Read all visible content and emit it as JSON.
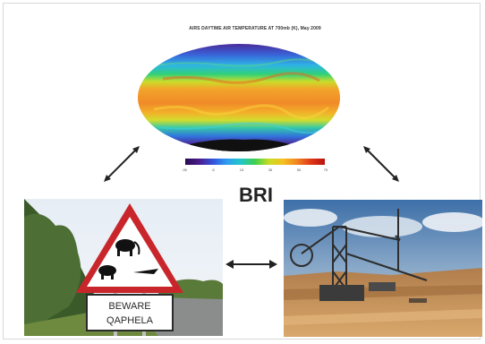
{
  "map": {
    "title": "AIRS DAYTIME AIR TEMPERATURE AT 700mb (K), May 2009",
    "scale_ticks": [
      "-95",
      "-5",
      "15",
      "35",
      "55",
      "75"
    ]
  },
  "hub_label": "BRI",
  "sign": {
    "line1": "BEWARE",
    "line2": "QAPHELA"
  },
  "icons": {
    "map": "temperature-map",
    "left": "road-warning-sign-photo",
    "right": "mining-excavator-photo"
  }
}
